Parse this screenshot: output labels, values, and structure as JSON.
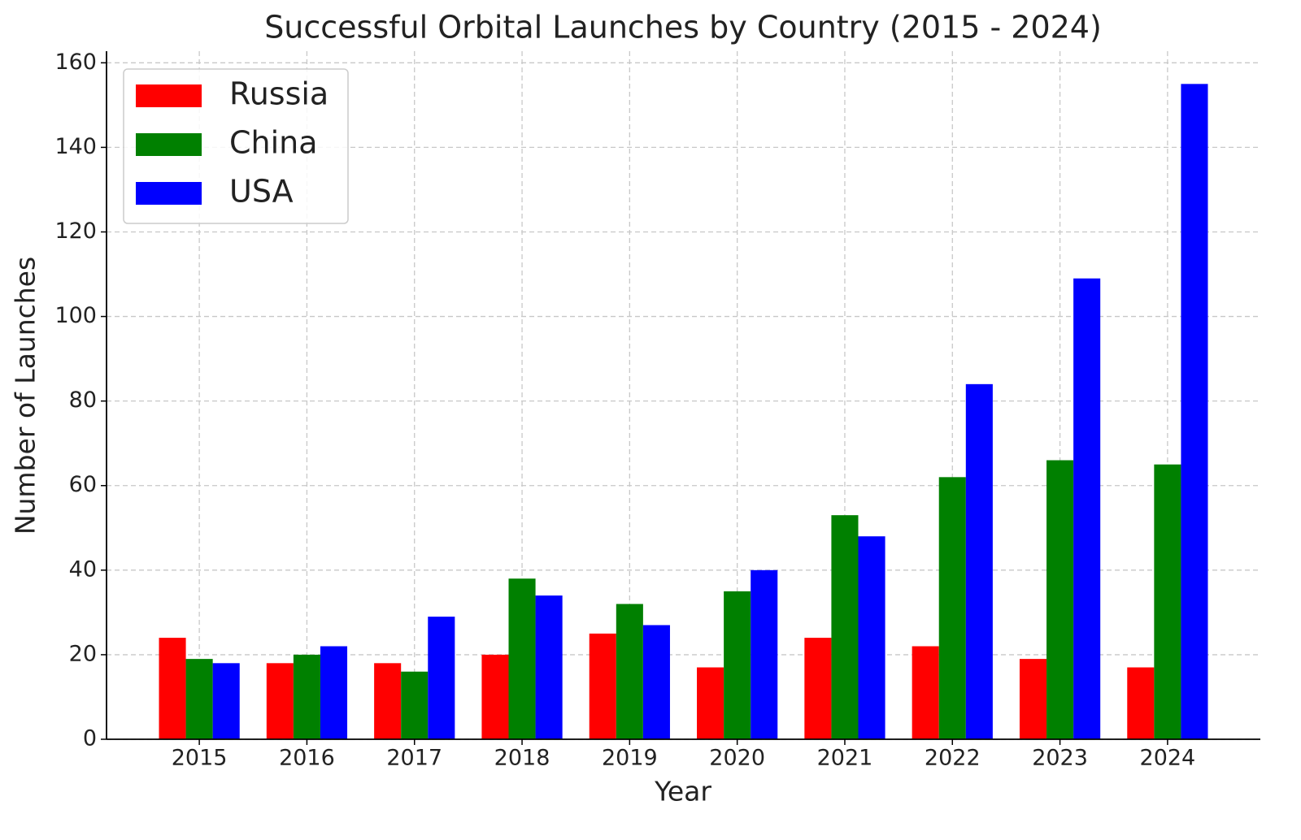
{
  "chart_data": {
    "type": "bar",
    "title": "Successful Orbital Launches by Country (2015 - 2024)",
    "x_label": "Year",
    "y_label": "Number of Launches",
    "categories": [
      "2015",
      "2016",
      "2017",
      "2018",
      "2019",
      "2020",
      "2021",
      "2022",
      "2023",
      "2024"
    ],
    "series": [
      {
        "name": "Russia",
        "color": "#ff0000",
        "values": [
          24,
          18,
          18,
          20,
          25,
          17,
          24,
          22,
          19,
          17
        ]
      },
      {
        "name": "China",
        "color": "#008000",
        "values": [
          19,
          20,
          16,
          38,
          32,
          35,
          53,
          62,
          66,
          65
        ]
      },
      {
        "name": "USA",
        "color": "#0000ff",
        "values": [
          18,
          22,
          29,
          34,
          27,
          40,
          48,
          84,
          109,
          155
        ]
      }
    ],
    "ylim": [
      0,
      162.75
    ],
    "yticks": [
      0,
      20,
      40,
      60,
      80,
      100,
      120,
      140,
      160
    ],
    "grid": true,
    "legend": "upper-left"
  }
}
